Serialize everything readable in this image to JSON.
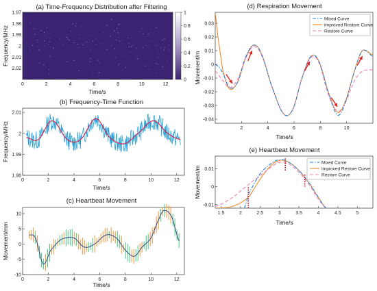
{
  "chart_data": [
    {
      "id": "a",
      "type": "heatmap",
      "title": "(a) Time-Frequency Distribution after Filtering",
      "xlabel": "Time/s",
      "ylabel": "Frequency/MHz",
      "xlim": [
        0,
        12.6
      ],
      "ylim": [
        1.97,
        2.03
      ],
      "y_inverted": true,
      "xticks": [
        "0",
        "2",
        "4",
        "6",
        "8",
        "10",
        "12"
      ],
      "xtick_values": [
        0,
        2,
        4,
        6,
        8,
        10,
        12
      ],
      "yticks": [
        "1.97",
        "1.98",
        "1.99",
        "2",
        "2.01",
        "2.02"
      ],
      "ytick_values": [
        1.97,
        1.98,
        1.99,
        2.0,
        2.01,
        2.02
      ],
      "colorbar": {
        "ticks": [
          "1",
          "0.8",
          "0.6",
          "0.4",
          "0.2",
          "0"
        ],
        "tick_values": [
          1,
          0.8,
          0.6,
          0.4,
          0.2,
          0
        ],
        "colors": [
          "#ffffff",
          "#a99ac9",
          "#3a2472"
        ]
      },
      "background_color": "#3a2472"
    },
    {
      "id": "b",
      "type": "line",
      "title": "(b) Frequency-Time Function",
      "xlabel": "Time/s",
      "ylabel": "Frequency/MHz",
      "xlim": [
        0,
        12.6
      ],
      "ylim": [
        1.98,
        2.012
      ],
      "xticks": [
        "0",
        "2",
        "4",
        "6",
        "8",
        "10",
        "12"
      ],
      "xtick_values": [
        0,
        2,
        4,
        6,
        8,
        10,
        12
      ],
      "yticks": [
        "1.98",
        "1.99",
        "2",
        "2.01"
      ],
      "ytick_values": [
        1.98,
        1.99,
        2.0,
        2.01
      ],
      "series": [
        {
          "style": "noisy",
          "color": "#1e9fd8",
          "x": [
            0.3,
            1.2,
            2.3,
            3.5,
            4.5,
            5.7,
            6.8,
            7.9,
            9.0,
            10.2,
            11.3,
            12.3
          ],
          "values": [
            1.998,
            1.997,
            2.006,
            1.997,
            1.997,
            2.007,
            1.998,
            1.995,
            2.0,
            2.006,
            2.0,
            1.997
          ]
        },
        {
          "style": "smooth",
          "color": "#d9284c",
          "x": [
            0.3,
            1.2,
            2.3,
            3.5,
            4.5,
            5.7,
            6.8,
            7.9,
            9.0,
            10.2,
            11.3,
            12.3
          ],
          "values": [
            1.998,
            1.997,
            2.006,
            1.997,
            1.997,
            2.007,
            1.998,
            1.995,
            2.0,
            2.006,
            2.0,
            1.997
          ]
        }
      ]
    },
    {
      "id": "c",
      "type": "line",
      "title": "(c) Heartbeat Movement",
      "xlabel": "Time/s",
      "ylabel": "Movement/mm",
      "xlim": [
        0,
        12.6
      ],
      "ylim": [
        -10,
        12
      ],
      "xticks": [
        "0",
        "2",
        "4",
        "6",
        "8",
        "10",
        "12"
      ],
      "xtick_values": [
        0,
        2,
        4,
        6,
        8,
        10,
        12
      ],
      "yticks": [
        "-10",
        "-5",
        "0",
        "5",
        "10"
      ],
      "ytick_values": [
        -10,
        -5,
        0,
        5,
        10
      ],
      "series": [
        {
          "style": "errorbars",
          "color": "#2fbf71",
          "x": [
            0.5,
            1.0,
            1.6,
            2.2,
            3.0,
            4.0,
            4.8,
            5.6,
            6.5,
            7.3,
            8.0,
            8.7,
            9.3,
            10.0,
            10.6,
            11.0,
            11.6,
            12.2
          ],
          "values": [
            3,
            2,
            -6.5,
            -2,
            1.5,
            2,
            -1,
            0,
            3,
            2,
            -2,
            -4,
            -1,
            2,
            8,
            11,
            9,
            1
          ]
        },
        {
          "style": "errorbars",
          "color": "#f08a24",
          "x": [
            0.5,
            1.0,
            1.6,
            2.2,
            3.0,
            4.0,
            4.8,
            5.6,
            6.5,
            7.3,
            8.0,
            8.7,
            9.3,
            10.0,
            10.6,
            11.0,
            11.6,
            12.2
          ],
          "values": [
            3,
            2,
            -6.5,
            -2,
            1.5,
            2,
            -1,
            0,
            3,
            2,
            -2,
            -4,
            -1,
            2,
            8,
            11,
            9,
            1
          ]
        },
        {
          "style": "line",
          "color": "#2c4a86",
          "x": [
            0.5,
            1.0,
            1.6,
            2.2,
            3.0,
            4.0,
            4.8,
            5.6,
            6.5,
            7.3,
            8.0,
            8.7,
            9.3,
            10.0,
            10.6,
            11.0,
            11.6,
            12.2
          ],
          "values": [
            3,
            2,
            -6.5,
            -2,
            1.5,
            2,
            -1,
            0,
            3,
            2,
            -2,
            -4,
            -1,
            2,
            8,
            11,
            9,
            1
          ]
        }
      ]
    },
    {
      "id": "d",
      "type": "line",
      "title": "(d) Respiration Movement",
      "xlabel": "Time/s",
      "ylabel": "Movement/m",
      "xlim": [
        0,
        12
      ],
      "ylim": [
        -0.043,
        0.038
      ],
      "xticks": [
        "2",
        "4",
        "6",
        "8",
        "10"
      ],
      "xtick_values": [
        2,
        4,
        6,
        8,
        10
      ],
      "yticks": [
        "-0.04",
        "-0.03",
        "-0.02",
        "-0.01",
        "0",
        "0.01",
        "0.02",
        "0.03"
      ],
      "ytick_values": [
        -0.04,
        -0.03,
        -0.02,
        -0.01,
        0,
        0.01,
        0.02,
        0.03
      ],
      "legend": {
        "position": "top-right"
      },
      "series": [
        {
          "name": "Mixed Curve",
          "color": "#1e7fd8",
          "dash": "5,2,1.5,2",
          "x": [
            0,
            0.5,
            1.1,
            1.7,
            2.3,
            2.9,
            3.5,
            4.3,
            5.2,
            5.9,
            6.6,
            7.3,
            7.9,
            8.6,
            9.3,
            9.9,
            10.6,
            11.2,
            12
          ],
          "values": [
            0,
            -0.005,
            -0.017,
            -0.013,
            0.005,
            0.014,
            0.008,
            -0.016,
            -0.036,
            -0.033,
            -0.01,
            0.006,
            0.002,
            -0.02,
            -0.037,
            -0.028,
            -0.005,
            0.01,
            0.006
          ]
        },
        {
          "name": "Improved Restore Curve",
          "color": "#f08a24",
          "dash": "",
          "x": [
            0,
            0.2,
            0.6,
            1.1,
            1.7,
            2.3,
            2.9,
            3.5,
            4.3,
            5.2,
            5.9,
            6.6,
            7.3,
            7.9,
            8.6,
            9.3,
            9.9,
            10.6,
            11.2,
            12
          ],
          "values": [
            0.037,
            0.02,
            -0.005,
            -0.018,
            -0.013,
            0.004,
            0.014,
            0.008,
            -0.016,
            -0.036,
            -0.033,
            -0.01,
            0.006,
            0.002,
            -0.02,
            -0.035,
            -0.027,
            -0.005,
            0.01,
            0.007
          ]
        },
        {
          "name": "Restore Curve",
          "color": "#f07fb0",
          "dash": "5,3",
          "x": [
            0,
            0.6,
            1.1,
            1.7,
            2.3,
            2.9,
            3.5,
            4.3,
            5.2,
            5.9,
            6.6,
            7.3,
            7.9,
            8.6,
            9.3,
            9.9,
            10.6,
            11.2,
            12
          ],
          "values": [
            -0.005,
            -0.012,
            -0.017,
            -0.011,
            0.004,
            0.013,
            0.007,
            -0.016,
            -0.036,
            -0.033,
            -0.01,
            0.005,
            0.001,
            -0.022,
            -0.034,
            -0.028,
            -0.012,
            -0.005,
            -0.004
          ]
        }
      ],
      "annotations": [
        {
          "type": "arrow",
          "color": "#e02020",
          "at": [
            1.3,
            -0.014
          ]
        },
        {
          "type": "arrow",
          "color": "#e02020",
          "at": [
            2.8,
            0.01
          ]
        },
        {
          "type": "arrow",
          "color": "#e02020",
          "at": [
            7.2,
            0.002
          ]
        },
        {
          "type": "arrow",
          "color": "#e02020",
          "at": [
            9.3,
            -0.031
          ]
        },
        {
          "type": "arrow",
          "color": "#e02020",
          "at": [
            11.2,
            0.006
          ]
        }
      ]
    },
    {
      "id": "e",
      "type": "line",
      "title": "(e) Heartbeat Movement",
      "xlabel": "Time/s",
      "ylabel": "Movement/m",
      "xlim": [
        1.35,
        5.4
      ],
      "ylim": [
        -0.012,
        0.017
      ],
      "xticks": [
        "1.5",
        "2",
        "2.5",
        "3",
        "3.5",
        "4",
        "4.5",
        "5"
      ],
      "xtick_values": [
        1.5,
        2,
        2.5,
        3,
        3.5,
        4,
        4.5,
        5
      ],
      "yticks": [
        "-0.01",
        "0",
        "0.01"
      ],
      "ytick_values": [
        -0.01,
        0,
        0.01
      ],
      "legend": {
        "position": "top-right"
      },
      "series": [
        {
          "name": "Mixed Curve",
          "color": "#1e7fd8",
          "dash": "5,2,1.5,2",
          "x": [
            2.1,
            2.2,
            2.5,
            2.8,
            3.0,
            3.2,
            3.5,
            3.8,
            4.0,
            4.2
          ],
          "values": [
            -0.012,
            -0.004,
            0.007,
            0.013,
            0.015,
            0.014,
            0.009,
            0.001,
            -0.006,
            -0.012
          ]
        },
        {
          "name": "Improved Restore Curve",
          "color": "#f08a24",
          "dash": "",
          "x": [
            1.35,
            1.8,
            2.2,
            2.5,
            2.8,
            3.0,
            3.2,
            3.5,
            3.8,
            4.0,
            4.2
          ],
          "values": [
            -0.012,
            -0.011,
            -0.006,
            0.004,
            0.012,
            0.0145,
            0.014,
            0.009,
            0.001,
            -0.006,
            -0.012
          ]
        },
        {
          "name": "Restore Curve",
          "color": "#f07fb0",
          "dash": "5,3",
          "x": [
            1.35,
            1.8,
            2.2,
            2.5,
            2.8,
            3.0,
            3.2,
            3.5,
            3.8,
            4.0,
            4.2
          ],
          "values": [
            -0.011,
            -0.006,
            0.001,
            0.006,
            0.011,
            0.0135,
            0.013,
            0.008,
            0.0,
            -0.007,
            -0.012
          ]
        }
      ],
      "annotations": [
        {
          "type": "vline-dotted",
          "color": "#c01010",
          "x": 2.2,
          "y0": -0.012,
          "y1": 0.0
        },
        {
          "type": "vline-dotted",
          "color": "#c01010",
          "x": 3.15,
          "y0": 0.009,
          "y1": 0.016
        },
        {
          "type": "vline-dotted",
          "color": "#c01010",
          "x": 3.65,
          "y0": 0.0,
          "y1": 0.007
        }
      ]
    }
  ]
}
